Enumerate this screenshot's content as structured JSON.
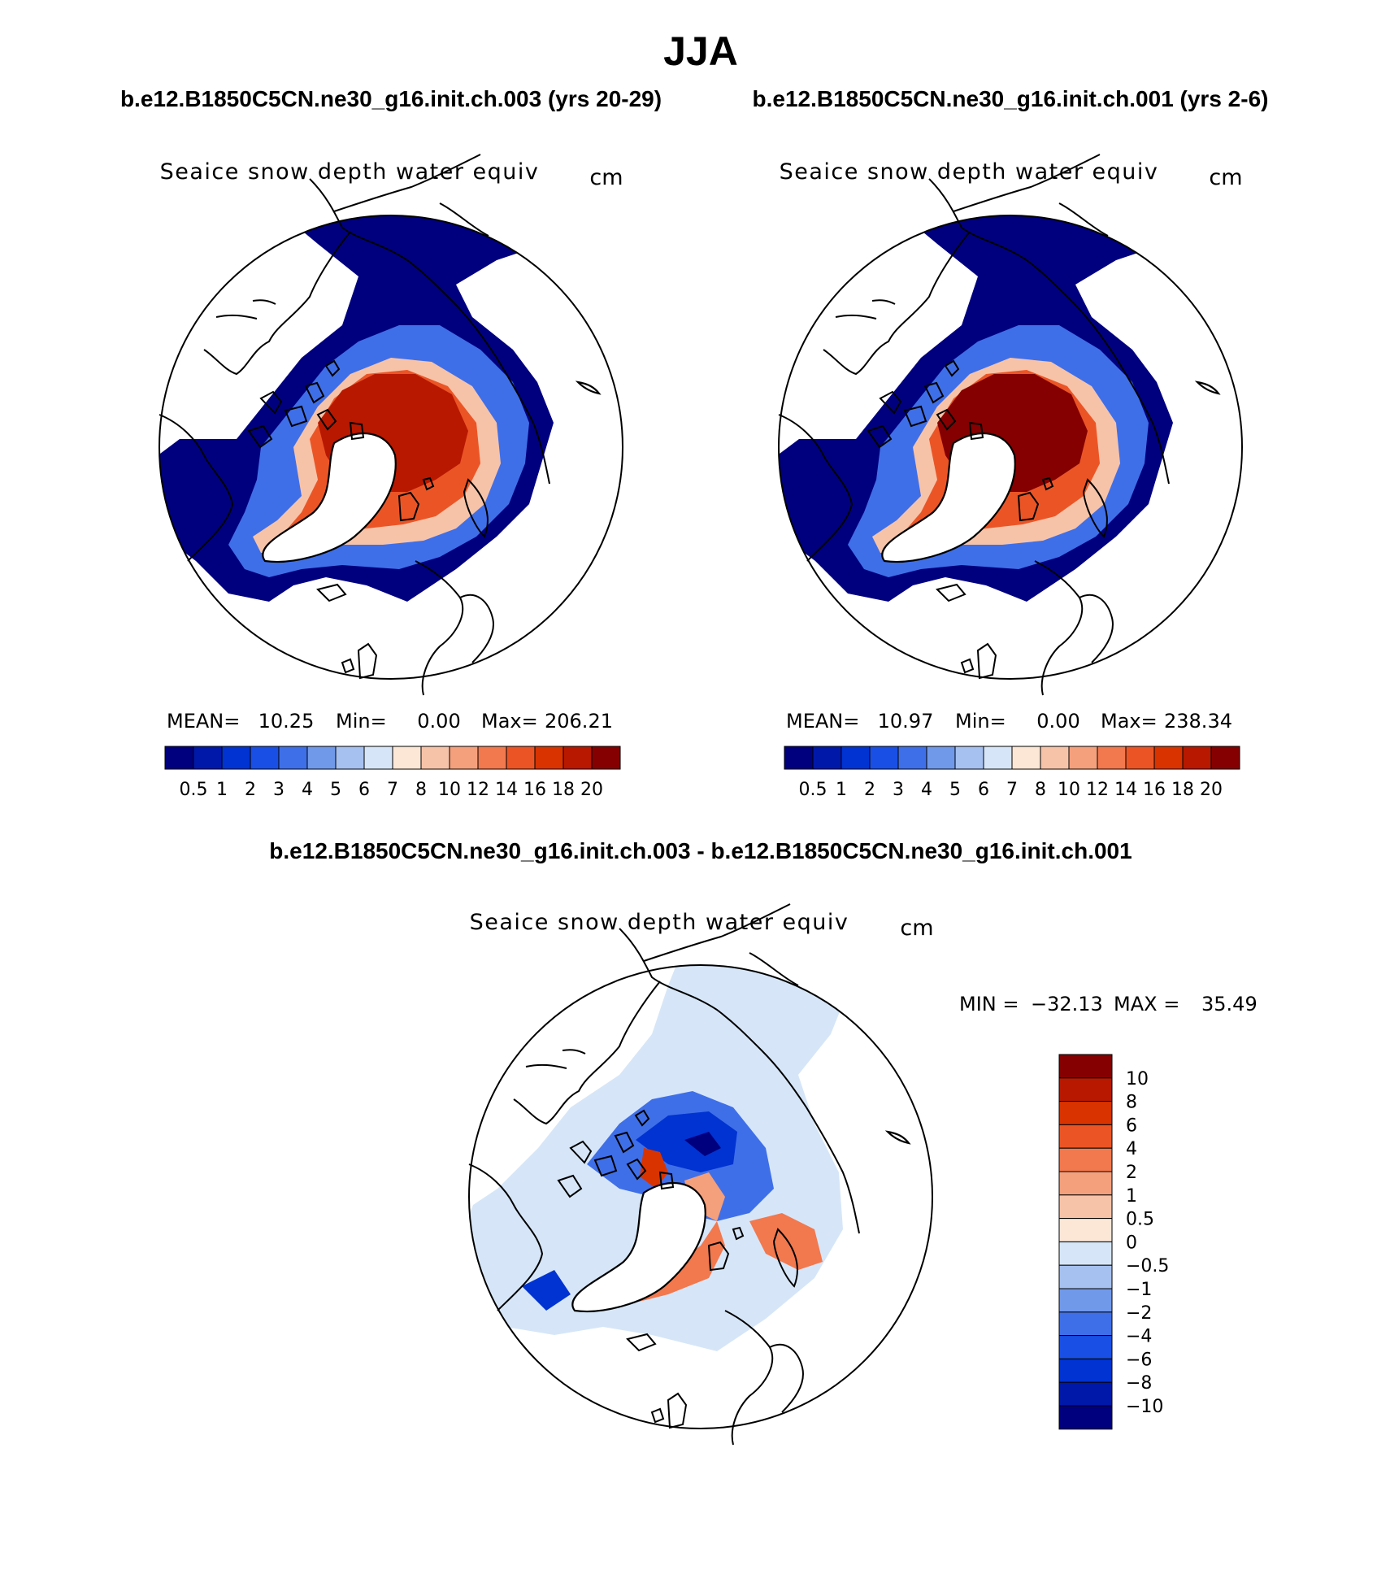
{
  "season": "JJA",
  "colors": {
    "seq": [
      "#00007f",
      "#0018a9",
      "#0033d1",
      "#1a4fe6",
      "#3f6fe8",
      "#7199ea",
      "#a6c1f0",
      "#d6e6f8",
      "#fce6d6",
      "#f7c3a8",
      "#f4a07c",
      "#f2784e",
      "#eb5526",
      "#d93300",
      "#b81800",
      "#850000"
    ],
    "div": [
      "#00007f",
      "#0018a9",
      "#0033d1",
      "#1a4fe6",
      "#3f6fe8",
      "#7199ea",
      "#a6c1f0",
      "#d6e6f8",
      "#fce6d6",
      "#f7c3a8",
      "#f4a07c",
      "#f2784e",
      "#eb5526",
      "#d93300",
      "#b81800",
      "#850000"
    ]
  },
  "panels": [
    {
      "case": "b.e12.B1850C5CN.ne30_g16.init.ch.003 (yrs 20-29)",
      "variable": "Seaice snow depth water equiv",
      "units": "cm",
      "stats": {
        "mean_label": "MEAN=",
        "mean": "10.25",
        "min_label": "Min=",
        "min": "0.00",
        "max_label": "Max=",
        "max": "206.21"
      },
      "levels": [
        "0.5",
        "1",
        "2",
        "3",
        "4",
        "5",
        "6",
        "7",
        "8",
        "10",
        "12",
        "14",
        "16",
        "18",
        "20"
      ],
      "central_level": 15
    },
    {
      "case": "b.e12.B1850C5CN.ne30_g16.init.ch.001 (yrs 2-6)",
      "variable": "Seaice snow depth water equiv",
      "units": "cm",
      "stats": {
        "mean_label": "MEAN=",
        "mean": "10.97",
        "min_label": "Min=",
        "min": "0.00",
        "max_label": "Max=",
        "max": "238.34"
      },
      "levels": [
        "0.5",
        "1",
        "2",
        "3",
        "4",
        "5",
        "6",
        "7",
        "8",
        "10",
        "12",
        "14",
        "16",
        "18",
        "20"
      ],
      "central_level": 16
    }
  ],
  "difference": {
    "title": "b.e12.B1850C5CN.ne30_g16.init.ch.003 - b.e12.B1850C5CN.ne30_g16.init.ch.001",
    "variable": "Seaice snow depth water equiv",
    "units": "cm",
    "min_label": "MIN =",
    "min": "−32.13",
    "max_label": "MAX =",
    "max": "35.49",
    "levels": [
      "10",
      "8",
      "6",
      "4",
      "2",
      "1",
      "0.5",
      "0",
      "−0.5",
      "−1",
      "−2",
      "−4",
      "−6",
      "−8",
      "−10"
    ]
  }
}
